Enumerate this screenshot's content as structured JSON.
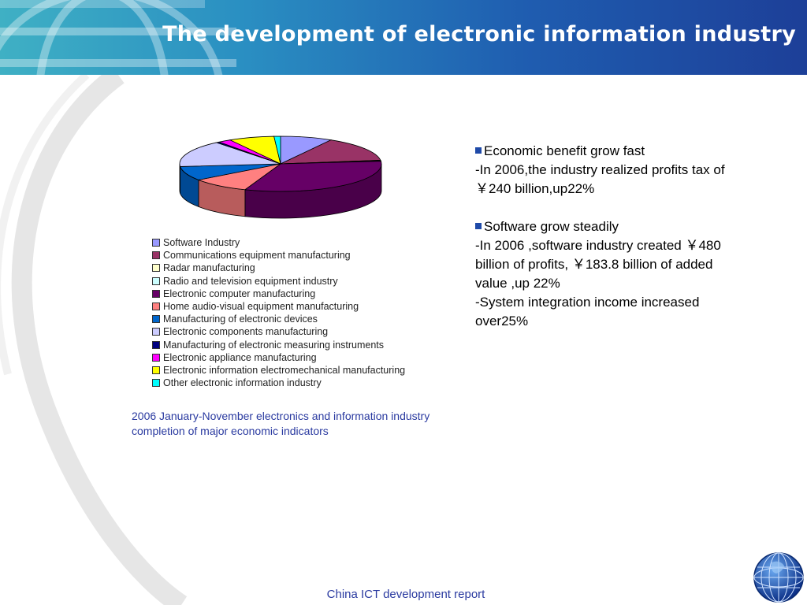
{
  "header": {
    "title": "The development of electronic information industry"
  },
  "chart_data": {
    "type": "pie",
    "style": "3d",
    "categories": [
      "Software Industry",
      "Communications equipment manufacturing",
      "Radar manufacturing",
      "Radio and television equipment industry",
      "Electronic computer manufacturing",
      "Home audio-visual equipment manufacturing",
      "Manufacturing of electronic devices",
      "Electronic components manufacturing",
      "Manufacturing of electronic measuring instruments",
      "Electronic appliance manufacturing",
      "Electronic information electromechanical manufacturing",
      "Other electronic information industry"
    ],
    "values": [
      8,
      14,
      0.2,
      0.3,
      31,
      9,
      8,
      15,
      0.5,
      2,
      7,
      1
    ],
    "colors": [
      "#9999ff",
      "#993366",
      "#ffffcc",
      "#ccffff",
      "#660066",
      "#ff8080",
      "#0066cc",
      "#ccccff",
      "#000080",
      "#ff00ff",
      "#ffff00",
      "#00ffff"
    ],
    "legend_position": "bottom",
    "caption": "2006 January-November electronics and information industry completion of major economic indicators"
  },
  "text": {
    "heading1": "Economic benefit grow fast",
    "para1": "-In 2006,the industry realized profits tax of ￥240 billion,up22%",
    "heading2": "Software grow steadily",
    "para2": " -In 2006 ,software industry created ￥480 billion of profits, ￥183.8 billion of added value ,up 22%",
    "para3": "-System integration income increased over25%",
    "bullet_color": "#1f4aa8"
  },
  "footer": {
    "label": "China ICT development report"
  },
  "icons": [
    "globe-icon",
    "globe-logo-icon"
  ]
}
